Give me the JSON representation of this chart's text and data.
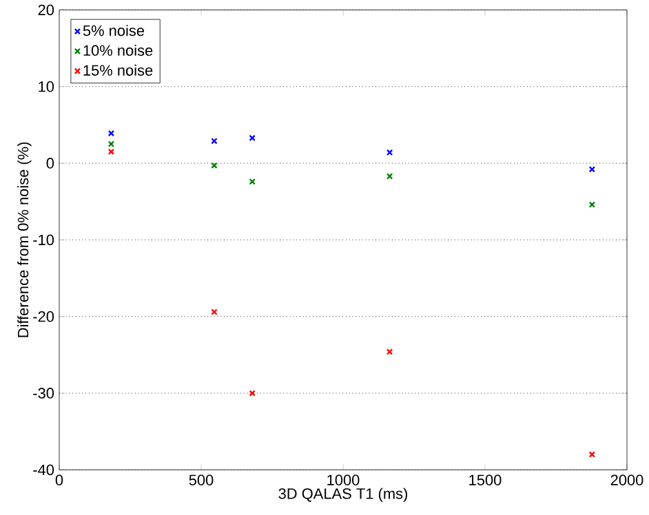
{
  "chart_data": {
    "type": "scatter",
    "xlabel": "3D QALAS T1 (ms)",
    "ylabel": "Difference from 0% noise (%)",
    "x": [
      183,
      546,
      680,
      1164,
      1877
    ],
    "series": [
      {
        "name": "5% noise",
        "color": "#0000ff",
        "values": [
          3.9,
          2.9,
          3.3,
          1.4,
          -0.8
        ]
      },
      {
        "name": "10% noise",
        "color": "#008000",
        "values": [
          2.5,
          -0.3,
          -2.4,
          -1.7,
          -5.4
        ]
      },
      {
        "name": "15% noise",
        "color": "#ff0000",
        "values": [
          1.5,
          -19.4,
          -30.0,
          -24.6,
          -38.0
        ]
      }
    ],
    "xlim": [
      0,
      2000
    ],
    "ylim": [
      -40,
      20
    ],
    "xticks": [
      0,
      500,
      1000,
      1500,
      2000
    ],
    "yticks": [
      -40,
      -30,
      -20,
      -10,
      0,
      10,
      20
    ],
    "grid": "y",
    "legend": "top left",
    "marker": "cross"
  }
}
